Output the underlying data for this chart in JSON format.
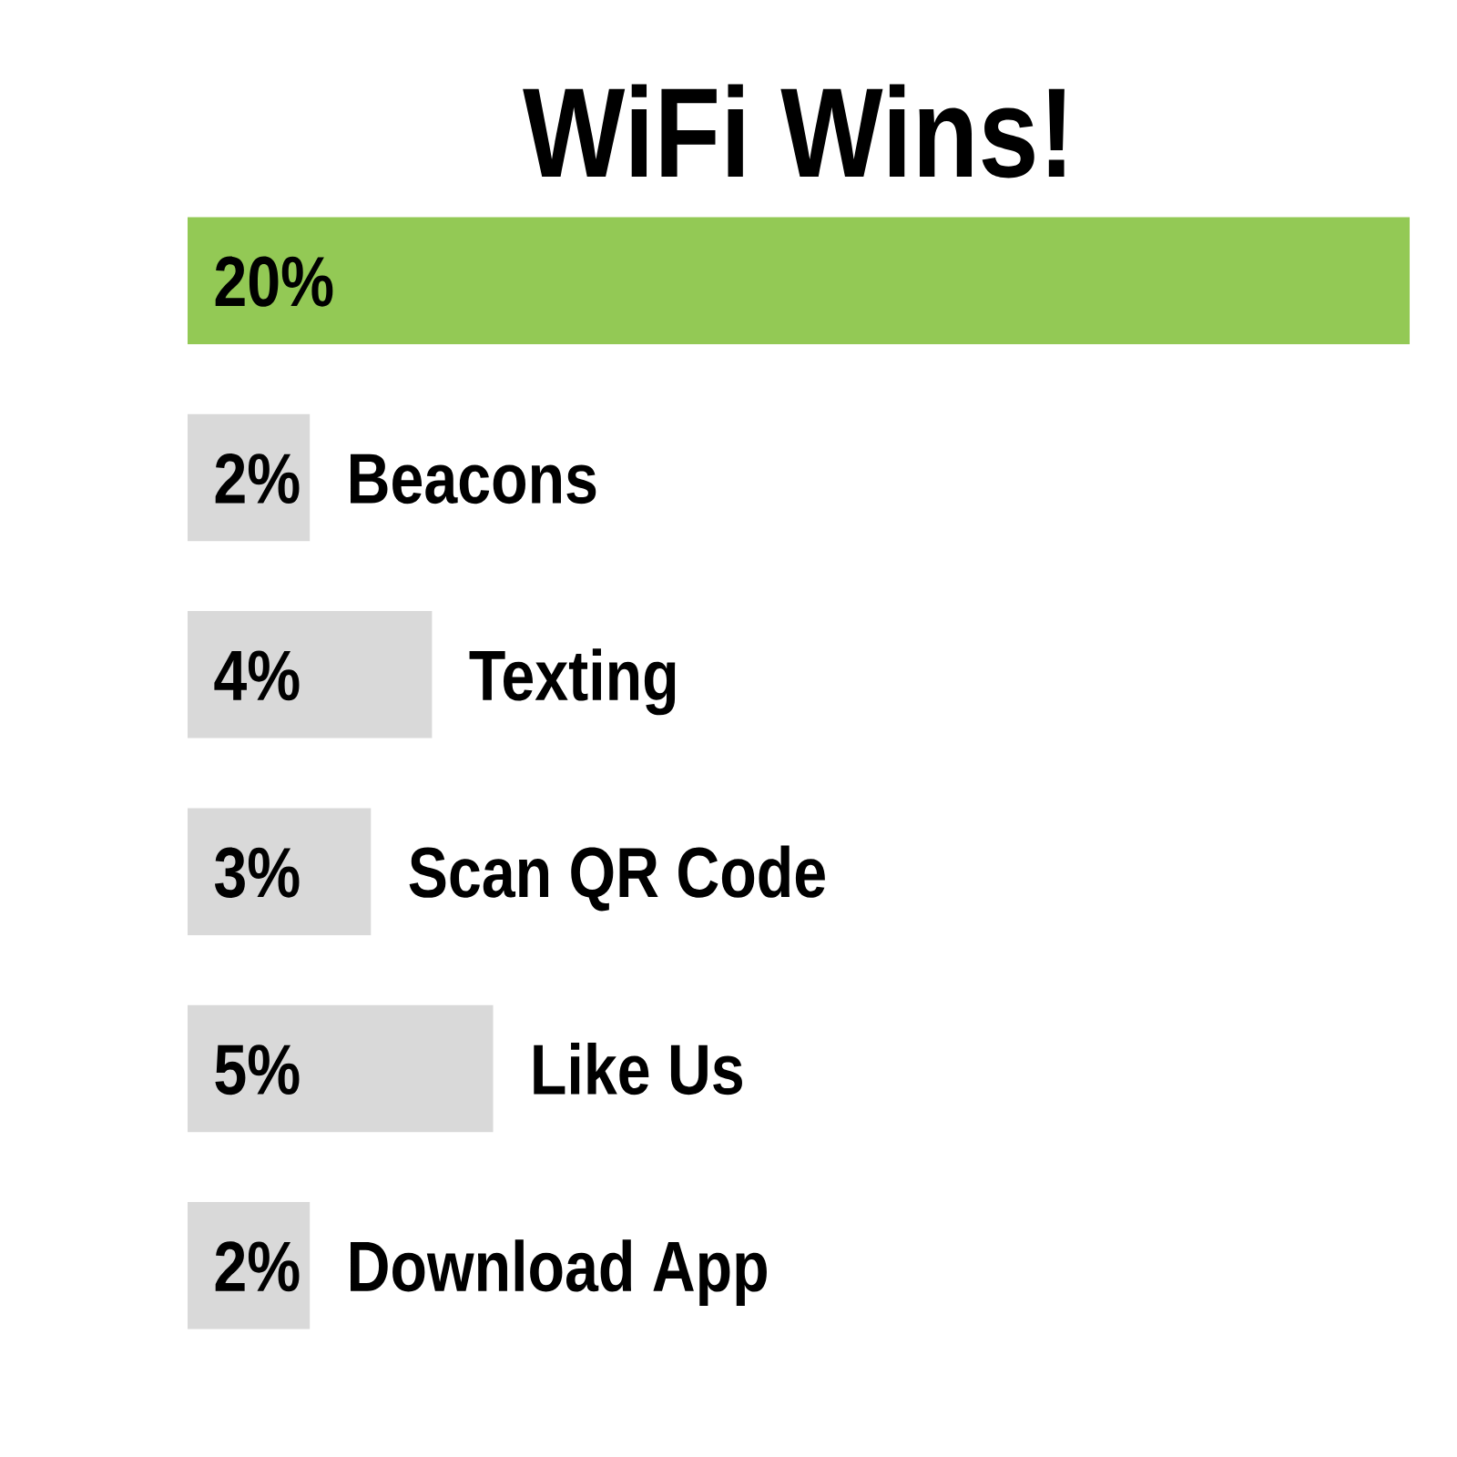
{
  "chart_data": {
    "type": "bar",
    "orientation": "horizontal",
    "title": "WiFi Wins!",
    "categories": [
      null,
      "Beacons",
      "Texting",
      "Scan QR Code",
      "Like Us",
      "Download App"
    ],
    "values": [
      20,
      2,
      4,
      3,
      5,
      2
    ],
    "colors": [
      "#93c955",
      "#d9d9d9",
      "#d9d9d9",
      "#d9d9d9",
      "#d9d9d9",
      "#d9d9d9"
    ],
    "value_labels": [
      "20%",
      "2%",
      "4%",
      "3%",
      "5%",
      "2%"
    ]
  }
}
